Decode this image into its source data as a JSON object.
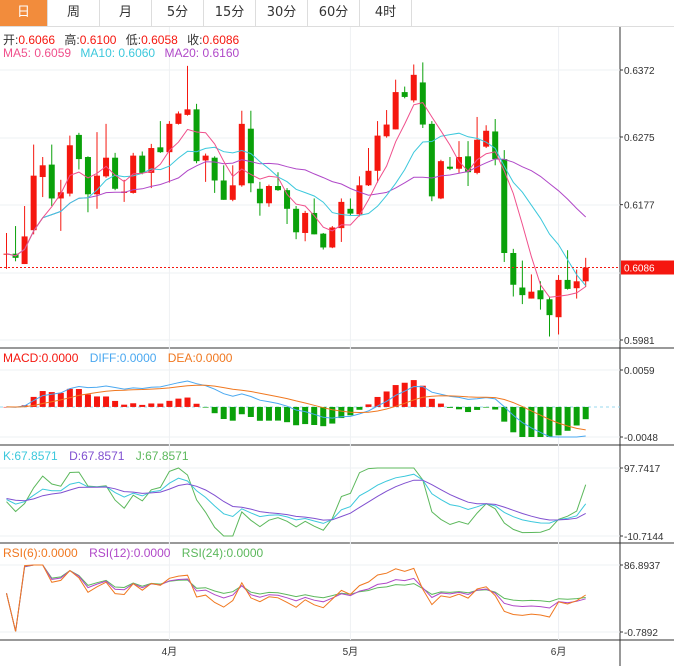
{
  "tabs": [
    {
      "label": "日",
      "active": true
    },
    {
      "label": "周"
    },
    {
      "label": "月"
    },
    {
      "label": "5分"
    },
    {
      "label": "15分"
    },
    {
      "label": "30分"
    },
    {
      "label": "60分"
    },
    {
      "label": "4时"
    }
  ],
  "ohlc_header": {
    "open_label": "开:",
    "open": "0.6066",
    "high_label": "高:",
    "high": "0.6100",
    "low_label": "低:",
    "low": "0.6058",
    "close_label": "收:",
    "close": "0.6086"
  },
  "ma_header": {
    "ma5": "MA5: 0.6059",
    "ma10": "MA10: 0.6060",
    "ma20": "MA20: 0.6160"
  },
  "macd_header": {
    "macd": "MACD:0.0000",
    "diff": "DIFF:0.0000",
    "dea": "DEA:0.0000"
  },
  "kdj_header": {
    "k": "K:67.8571",
    "d": "D:67.8571",
    "j": "J:67.8571"
  },
  "rsi_header": {
    "rsi6": "RSI(6):0.0000",
    "rsi12": "RSI(12):0.0000",
    "rsi24": "RSI(24):0.0000"
  },
  "colors": {
    "up": "#F5170F",
    "down": "#0AA10A",
    "active_tab": "#F28C3C",
    "ma5": "#F0508C",
    "ma10": "#3CC8DC",
    "ma20": "#B048C8",
    "diff": "#4AA8F0",
    "dea": "#F07820",
    "k": "#3CC8DC",
    "d": "#8050D0",
    "j": "#5CB85C",
    "rsi6": "#F07820",
    "rsi12": "#B048C8",
    "rsi24": "#5CB85C"
  },
  "chart_data": {
    "type": "candlestick",
    "title": "",
    "price_axis": {
      "ticks": [
        "0.6372",
        "0.6275",
        "0.6177",
        "0.5981"
      ],
      "range": [
        0.5981,
        0.6372
      ]
    },
    "last_price": "0.6086",
    "macd_axis": {
      "ticks": [
        "0.0059",
        "-0.0048"
      ],
      "range": [
        -0.0048,
        0.0059
      ]
    },
    "kdj_axis": {
      "ticks": [
        "97.7417",
        "-10.7144"
      ],
      "range": [
        -10.7144,
        97.7417
      ]
    },
    "rsi_axis": {
      "ticks": [
        "86.8937",
        "-0.7892"
      ],
      "range": [
        -0.7892,
        86.8937
      ]
    },
    "months": [
      {
        "label": "4月",
        "index": 18
      },
      {
        "label": "5月",
        "index": 38
      },
      {
        "label": "6月",
        "index": 61
      }
    ],
    "ohlc_columns": [
      "open",
      "high",
      "low",
      "close"
    ],
    "candles": [
      [
        0.6106,
        0.6136,
        0.6084,
        0.6106
      ],
      [
        0.6106,
        0.6146,
        0.6095,
        0.61
      ],
      [
        0.6091,
        0.6175,
        0.6091,
        0.6131
      ],
      [
        0.614,
        0.6264,
        0.6134,
        0.6219
      ],
      [
        0.6217,
        0.6246,
        0.6188,
        0.6234
      ],
      [
        0.6235,
        0.6264,
        0.6175,
        0.6186
      ],
      [
        0.6186,
        0.6213,
        0.6139,
        0.6195
      ],
      [
        0.6193,
        0.6277,
        0.6189,
        0.6263
      ],
      [
        0.6278,
        0.6281,
        0.6228,
        0.6243
      ],
      [
        0.6246,
        0.6247,
        0.6166,
        0.6192
      ],
      [
        0.6192,
        0.6282,
        0.6171,
        0.6219
      ],
      [
        0.6218,
        0.6294,
        0.6216,
        0.6245
      ],
      [
        0.6245,
        0.6252,
        0.6198,
        0.62
      ],
      [
        0.6194,
        0.6213,
        0.6181,
        0.6196
      ],
      [
        0.6194,
        0.6252,
        0.6193,
        0.6248
      ],
      [
        0.6248,
        0.6254,
        0.6221,
        0.6223
      ],
      [
        0.6223,
        0.6265,
        0.6201,
        0.6259
      ],
      [
        0.626,
        0.6298,
        0.6252,
        0.6253
      ],
      [
        0.6253,
        0.6298,
        0.6209,
        0.6294
      ],
      [
        0.6294,
        0.6312,
        0.6293,
        0.6309
      ],
      [
        0.6307,
        0.6378,
        0.6306,
        0.6315
      ],
      [
        0.6315,
        0.6323,
        0.6237,
        0.624
      ],
      [
        0.6241,
        0.6251,
        0.621,
        0.6248
      ],
      [
        0.6245,
        0.6247,
        0.6194,
        0.6212
      ],
      [
        0.6212,
        0.6234,
        0.6184,
        0.6184
      ],
      [
        0.6184,
        0.6234,
        0.6182,
        0.6205
      ],
      [
        0.6205,
        0.6313,
        0.6203,
        0.6294
      ],
      [
        0.6287,
        0.6313,
        0.6195,
        0.6208
      ],
      [
        0.62,
        0.621,
        0.6161,
        0.6179
      ],
      [
        0.6179,
        0.6206,
        0.6174,
        0.6204
      ],
      [
        0.6204,
        0.6224,
        0.6197,
        0.6198
      ],
      [
        0.6198,
        0.6201,
        0.6149,
        0.6171
      ],
      [
        0.6171,
        0.6175,
        0.6127,
        0.6137
      ],
      [
        0.6136,
        0.6168,
        0.6124,
        0.6165
      ],
      [
        0.6165,
        0.6186,
        0.6134,
        0.6134
      ],
      [
        0.6135,
        0.6136,
        0.6112,
        0.6115
      ],
      [
        0.6115,
        0.6146,
        0.6114,
        0.6144
      ],
      [
        0.6143,
        0.6186,
        0.6123,
        0.6181
      ],
      [
        0.6171,
        0.6186,
        0.6162,
        0.6164
      ],
      [
        0.6163,
        0.6218,
        0.616,
        0.6205
      ],
      [
        0.6205,
        0.6259,
        0.6204,
        0.6226
      ],
      [
        0.6226,
        0.6298,
        0.6209,
        0.6277
      ],
      [
        0.6276,
        0.6314,
        0.6274,
        0.6293
      ],
      [
        0.6286,
        0.6358,
        0.6286,
        0.634
      ],
      [
        0.634,
        0.6348,
        0.6331,
        0.6333
      ],
      [
        0.6328,
        0.638,
        0.6325,
        0.6365
      ],
      [
        0.6354,
        0.6383,
        0.6288,
        0.6293
      ],
      [
        0.6294,
        0.6298,
        0.6182,
        0.6189
      ],
      [
        0.6186,
        0.6242,
        0.6185,
        0.624
      ],
      [
        0.6232,
        0.6246,
        0.6227,
        0.6229
      ],
      [
        0.6229,
        0.6269,
        0.6223,
        0.6246
      ],
      [
        0.6247,
        0.6269,
        0.6204,
        0.6224
      ],
      [
        0.6223,
        0.6304,
        0.6221,
        0.6271
      ],
      [
        0.6261,
        0.6292,
        0.6259,
        0.6284
      ],
      [
        0.6283,
        0.6301,
        0.6234,
        0.6243
      ],
      [
        0.6243,
        0.6256,
        0.6094,
        0.6107
      ],
      [
        0.6107,
        0.6113,
        0.6044,
        0.6061
      ],
      [
        0.6057,
        0.6096,
        0.6033,
        0.6046
      ],
      [
        0.6041,
        0.6076,
        0.6041,
        0.6051
      ],
      [
        0.6053,
        0.6066,
        0.6025,
        0.604
      ],
      [
        0.604,
        0.6044,
        0.5986,
        0.6017
      ],
      [
        0.6014,
        0.6075,
        0.5989,
        0.6068
      ],
      [
        0.6068,
        0.6111,
        0.6054,
        0.6055
      ],
      [
        0.6056,
        0.6083,
        0.6041,
        0.6066
      ],
      [
        0.6066,
        0.61,
        0.6058,
        0.6086
      ]
    ]
  }
}
